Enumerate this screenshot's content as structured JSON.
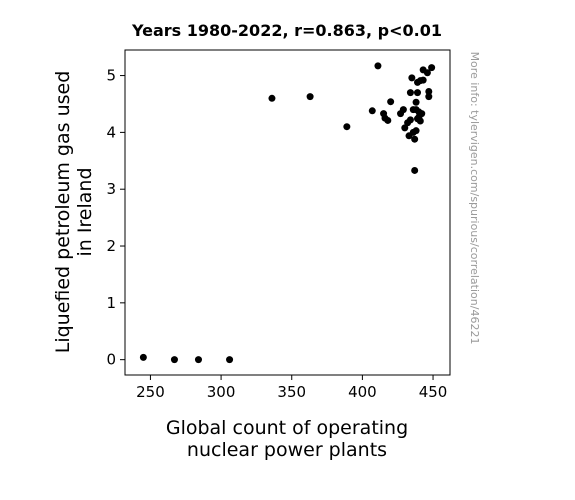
{
  "chart_data": {
    "type": "scatter",
    "title": "Years 1980-2022, r=0.863, p<0.01",
    "xlabel": [
      "Global count of operating",
      "nuclear power plants"
    ],
    "ylabel": [
      "Liquefied petroleum gas used",
      "in Ireland"
    ],
    "xlim": [
      232,
      462
    ],
    "ylim": [
      -0.27,
      5.45
    ],
    "xticks": [
      250,
      300,
      350,
      400,
      450
    ],
    "yticks": [
      0,
      1,
      2,
      3,
      4,
      5
    ],
    "grid": false,
    "point_color": "#000000",
    "side_note": "More info: tylervigen.com/spurious/correlation/46221",
    "points": [
      [
        245,
        0.04
      ],
      [
        267,
        0.0
      ],
      [
        284,
        0.0
      ],
      [
        306,
        0.0
      ],
      [
        336,
        4.6
      ],
      [
        363,
        4.63
      ],
      [
        389,
        4.1
      ],
      [
        407,
        4.38
      ],
      [
        411,
        5.17
      ],
      [
        415,
        4.33
      ],
      [
        416,
        4.25
      ],
      [
        418,
        4.21
      ],
      [
        420,
        4.54
      ],
      [
        427,
        4.33
      ],
      [
        429,
        4.4
      ],
      [
        430,
        4.08
      ],
      [
        432,
        4.17
      ],
      [
        433,
        3.94
      ],
      [
        434,
        4.22
      ],
      [
        434,
        4.7
      ],
      [
        435,
        4.96
      ],
      [
        436,
        4.4
      ],
      [
        436,
        4.0
      ],
      [
        437,
        3.88
      ],
      [
        437,
        3.33
      ],
      [
        438,
        4.03
      ],
      [
        438,
        4.53
      ],
      [
        438,
        4.4
      ],
      [
        439,
        4.7
      ],
      [
        439,
        4.88
      ],
      [
        439,
        4.24
      ],
      [
        440,
        4.27
      ],
      [
        440,
        4.36
      ],
      [
        441,
        4.2
      ],
      [
        441,
        4.91
      ],
      [
        442,
        4.33
      ],
      [
        443,
        5.1
      ],
      [
        443,
        4.92
      ],
      [
        446,
        5.05
      ],
      [
        447,
        4.63
      ],
      [
        447,
        4.72
      ],
      [
        449,
        5.14
      ]
    ]
  }
}
